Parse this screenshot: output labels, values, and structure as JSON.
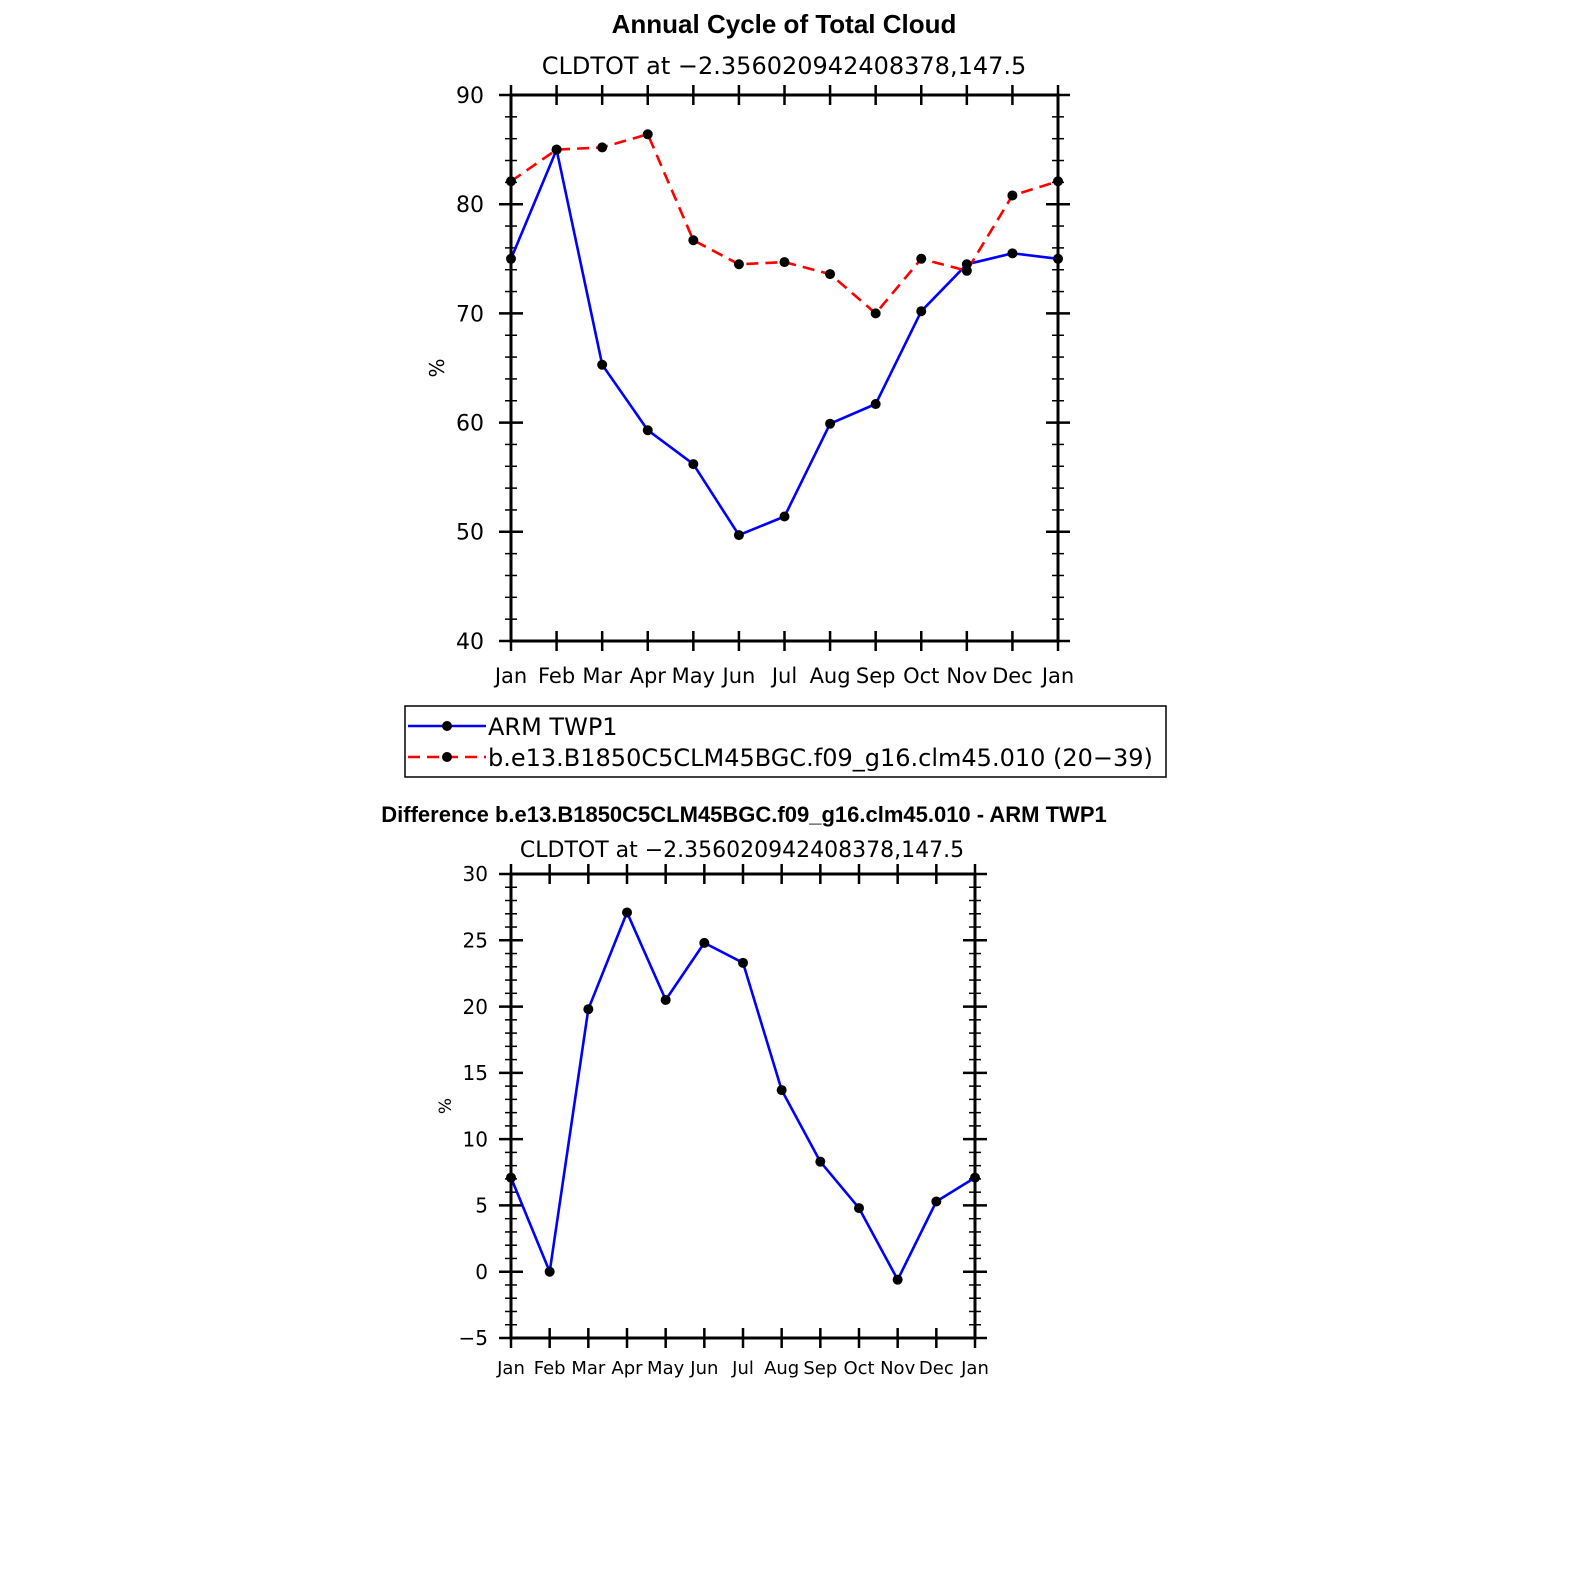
{
  "chart_data": [
    {
      "type": "line",
      "title": "Annual Cycle of Total Cloud",
      "subtitle": "CLDTOT at −2.356020942408378,147.5",
      "xlabel": "",
      "ylabel": "%",
      "categories": [
        "Jan",
        "Feb",
        "Mar",
        "Apr",
        "May",
        "Jun",
        "Jul",
        "Aug",
        "Sep",
        "Oct",
        "Nov",
        "Dec",
        "Jan"
      ],
      "ylim": [
        40,
        90
      ],
      "yticks": [
        "40",
        "50",
        "60",
        "70",
        "80",
        "90"
      ],
      "grid": false,
      "legend_position": "below",
      "series": [
        {
          "name": "ARM TWP1",
          "color": "#0000ff",
          "dash": "solid",
          "values": [
            75.0,
            85.0,
            65.3,
            59.3,
            56.2,
            49.7,
            51.4,
            59.9,
            61.7,
            70.2,
            74.5,
            75.5,
            75.0
          ]
        },
        {
          "name": "b.e13.B1850C5CLM45BGC.f09_g16.clm45.010 (20−39)",
          "color": "#ff0000",
          "dash": "dashed",
          "values": [
            82.1,
            85.0,
            85.2,
            86.4,
            76.7,
            74.5,
            74.7,
            73.6,
            70.0,
            75.0,
            73.9,
            80.8,
            82.1
          ]
        }
      ]
    },
    {
      "type": "line",
      "title": "Difference b.e13.B1850C5CLM45BGC.f09_g16.clm45.010 - ARM TWP1",
      "subtitle": "CLDTOT at −2.356020942408378,147.5",
      "xlabel": "",
      "ylabel": "%",
      "categories": [
        "Jan",
        "Feb",
        "Mar",
        "Apr",
        "May",
        "Jun",
        "Jul",
        "Aug",
        "Sep",
        "Oct",
        "Nov",
        "Dec",
        "Jan"
      ],
      "ylim": [
        -5,
        30
      ],
      "yticks": [
        "−5",
        "0",
        "5",
        "10",
        "15",
        "20",
        "25",
        "30"
      ],
      "grid": false,
      "series": [
        {
          "color": "#0000ff",
          "dash": "solid",
          "values": [
            7.1,
            0.0,
            19.8,
            27.1,
            20.5,
            24.8,
            23.3,
            13.7,
            8.3,
            4.8,
            -0.6,
            5.3,
            7.1
          ]
        }
      ]
    }
  ]
}
